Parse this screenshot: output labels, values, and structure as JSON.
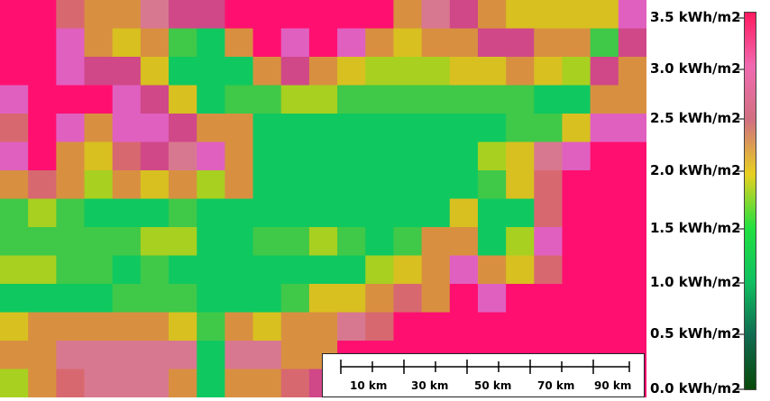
{
  "legend": {
    "ticks": [
      "3.5 kWh/m2",
      "3.0 kWh/m2",
      "2.5 kWh/m2",
      "2.0 kWh/m2",
      "1.5 kWh/m2",
      "1.0 kWh/m2",
      "0.5 kWh/m2",
      "0.0 kWh/m2"
    ],
    "gradient": [
      "#ff1a60",
      "#f06ab0",
      "#d07080",
      "#e8d020",
      "#22e040",
      "#10c060",
      "#106a50",
      "#0a4a0a"
    ]
  },
  "scalebar": {
    "labels": [
      "10 km",
      "30 km",
      "50 km",
      "70 km",
      "90 km"
    ]
  },
  "grid": {
    "rows": 14,
    "cols": 23,
    "cells": [
      [
        "F",
        "F",
        "R",
        "O",
        "O",
        "S",
        "M",
        "M",
        "F",
        "F",
        "F",
        "F",
        "F",
        "F",
        "O",
        "S",
        "M",
        "O",
        "Y",
        "Y",
        "Y",
        "Y",
        "P"
      ],
      [
        "F",
        "F",
        "P",
        "O",
        "Y",
        "O",
        "G",
        "C",
        "O",
        "F",
        "P",
        "F",
        "P",
        "O",
        "Y",
        "O",
        "O",
        "M",
        "M",
        "O",
        "O",
        "G",
        "M"
      ],
      [
        "F",
        "F",
        "P",
        "M",
        "M",
        "Y",
        "C",
        "C",
        "C",
        "O",
        "M",
        "O",
        "Y",
        "L",
        "L",
        "L",
        "Y",
        "Y",
        "O",
        "Y",
        "L",
        "M",
        "O"
      ],
      [
        "P",
        "F",
        "F",
        "F",
        "P",
        "M",
        "Y",
        "C",
        "G",
        "G",
        "L",
        "L",
        "G",
        "G",
        "G",
        "G",
        "G",
        "G",
        "G",
        "C",
        "C",
        "O",
        "O"
      ],
      [
        "R",
        "F",
        "P",
        "O",
        "P",
        "P",
        "M",
        "O",
        "O",
        "C",
        "C",
        "C",
        "C",
        "C",
        "C",
        "C",
        "C",
        "C",
        "G",
        "G",
        "Y",
        "P",
        "P"
      ],
      [
        "P",
        "F",
        "O",
        "Y",
        "R",
        "M",
        "S",
        "P",
        "O",
        "C",
        "C",
        "C",
        "C",
        "C",
        "C",
        "C",
        "C",
        "L",
        "Y",
        "S",
        "P",
        "F",
        "F"
      ],
      [
        "O",
        "R",
        "O",
        "L",
        "O",
        "Y",
        "O",
        "L",
        "O",
        "C",
        "C",
        "C",
        "C",
        "C",
        "C",
        "C",
        "C",
        "G",
        "Y",
        "R",
        "F",
        "F",
        "F"
      ],
      [
        "G",
        "L",
        "G",
        "C",
        "C",
        "C",
        "G",
        "C",
        "C",
        "C",
        "C",
        "C",
        "C",
        "C",
        "C",
        "C",
        "Y",
        "C",
        "C",
        "R",
        "F",
        "F",
        "F"
      ],
      [
        "G",
        "G",
        "G",
        "G",
        "G",
        "L",
        "L",
        "C",
        "C",
        "G",
        "G",
        "L",
        "G",
        "C",
        "G",
        "O",
        "O",
        "C",
        "L",
        "P",
        "F",
        "F",
        "F"
      ],
      [
        "L",
        "L",
        "G",
        "G",
        "C",
        "G",
        "C",
        "C",
        "C",
        "C",
        "C",
        "C",
        "C",
        "L",
        "Y",
        "O",
        "P",
        "O",
        "Y",
        "R",
        "F",
        "F",
        "F"
      ],
      [
        "C",
        "C",
        "C",
        "C",
        "G",
        "G",
        "G",
        "C",
        "C",
        "C",
        "G",
        "Y",
        "Y",
        "O",
        "R",
        "O",
        "F",
        "P",
        "F",
        "F",
        "F",
        "F",
        "F"
      ],
      [
        "Y",
        "O",
        "O",
        "O",
        "O",
        "O",
        "Y",
        "G",
        "O",
        "Y",
        "O",
        "O",
        "S",
        "R",
        "F",
        "F",
        "F",
        "F",
        "F",
        "F",
        "F",
        "F",
        "F"
      ],
      [
        "O",
        "O",
        "S",
        "S",
        "S",
        "S",
        "S",
        "C",
        "S",
        "S",
        "O",
        "O",
        "F",
        "F",
        "F",
        "F",
        "F",
        "F",
        "F",
        "F",
        "F",
        "F",
        "F"
      ],
      [
        "L",
        "O",
        "R",
        "S",
        "S",
        "S",
        "O",
        "C",
        "O",
        "O",
        "R",
        "M",
        "M",
        "F",
        "F",
        "F",
        "F",
        "F",
        "F",
        "F",
        "F",
        "F",
        "F"
      ]
    ],
    "palette": {
      "F": "#ff1070",
      "P": "#e060c0",
      "M": "#d04888",
      "R": "#d86870",
      "S": "#d87890",
      "O": "#d89040",
      "Y": "#d8c020",
      "L": "#a8d020",
      "G": "#40c848",
      "C": "#10c860"
    }
  }
}
